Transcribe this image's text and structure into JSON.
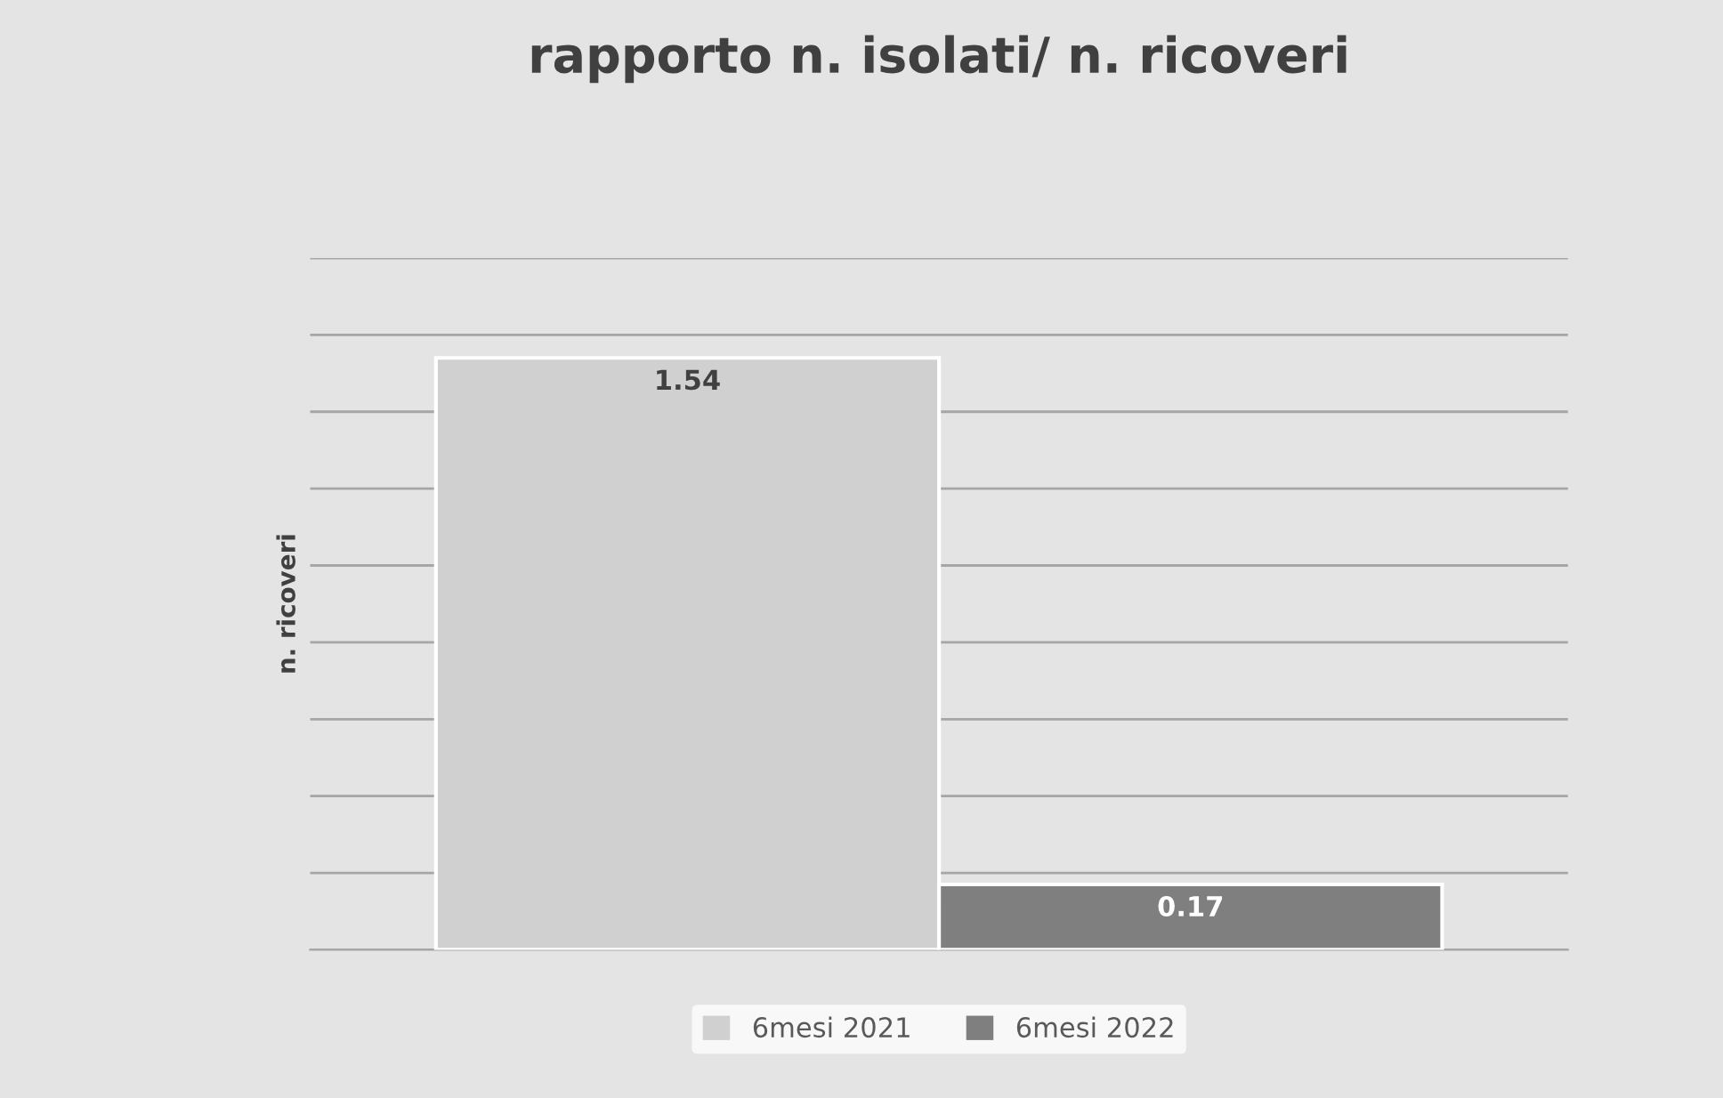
{
  "chart_data": {
    "type": "bar",
    "title": "rapporto n. isolati/ n. ricoveri",
    "ylabel": "n. ricoveri",
    "categories": [
      null
    ],
    "series": [
      {
        "name": "6mesi 2021",
        "color": "#d0d0d0",
        "values": [
          1.54
        ]
      },
      {
        "name": "6mesi 2022",
        "color": "#7f7f7f",
        "values": [
          0.17
        ]
      }
    ],
    "ylim": [
      0,
      1.8
    ],
    "yticks": [
      {
        "value": 0,
        "label": null
      },
      {
        "value": 0.2,
        "label": null
      },
      {
        "value": 0.4,
        "label": null
      },
      {
        "value": 0.6,
        "label": null
      },
      {
        "value": 0.8,
        "label": null
      },
      {
        "value": 1.0,
        "label": null
      },
      {
        "value": 1.2,
        "label": null
      },
      {
        "value": 1.4,
        "label": null
      },
      {
        "value": 1.6,
        "label": null
      },
      {
        "value": 1.8,
        "label": null
      }
    ],
    "grid": "y",
    "legend": "bottom",
    "data_labels": true,
    "tick_labels": false
  }
}
